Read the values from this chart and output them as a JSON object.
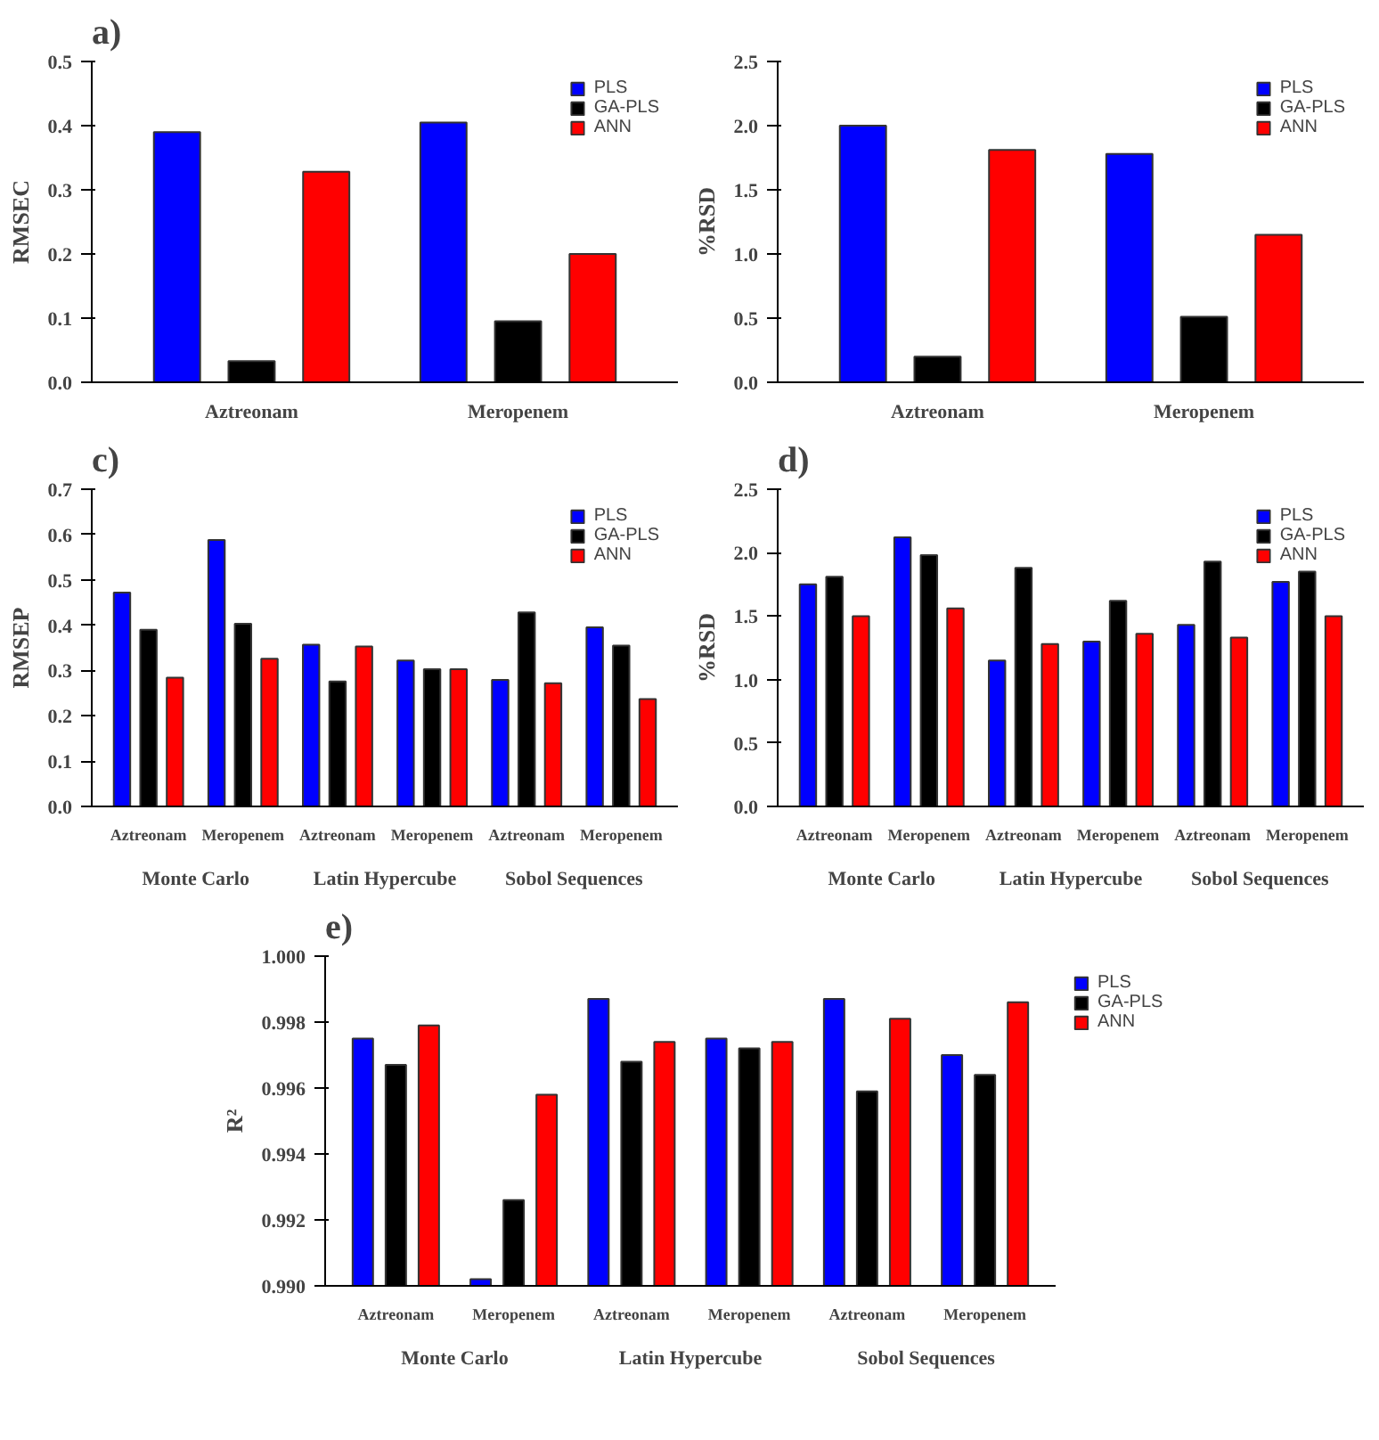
{
  "chart_data": [
    {
      "type": "bar",
      "title": "a)",
      "ylabel": "RMSEC",
      "categories": [
        "Aztreonam",
        "Meropenem"
      ],
      "series": [
        {
          "name": "PLS",
          "color": "#0000ff",
          "values": [
            0.39,
            0.405
          ]
        },
        {
          "name": "GA-PLS",
          "color": "#000000",
          "values": [
            0.033,
            0.095
          ]
        },
        {
          "name": "ANN",
          "color": "#ff0000",
          "values": [
            0.328,
            0.2
          ]
        }
      ],
      "ylim": [
        0,
        0.5
      ],
      "yticks": [
        {
          "value": 0,
          "label": "0.0"
        },
        0.1,
        0.2,
        0.3,
        0.4,
        0.5
      ],
      "legend": "top right",
      "grid": false
    },
    {
      "type": "bar",
      "ylabel": "%RSD",
      "categories": [
        "Aztreonam",
        "Meropenem"
      ],
      "series": [
        {
          "name": "PLS",
          "color": "#0000ff",
          "values": [
            2.0,
            1.78
          ]
        },
        {
          "name": "GA-PLS",
          "color": "#000000",
          "values": [
            0.2,
            0.51
          ]
        },
        {
          "name": "ANN",
          "color": "#ff0000",
          "values": [
            1.81,
            1.15
          ]
        }
      ],
      "ylim": [
        0,
        2.5
      ],
      "yticks": [
        {
          "value": 0,
          "label": "0.0"
        },
        0.5,
        {
          "value": 1,
          "label": "1.0"
        },
        1.5,
        {
          "value": 2,
          "label": "2.0"
        },
        2.5
      ],
      "legend": "top right",
      "grid": false
    },
    {
      "type": "bar",
      "title": "c)",
      "ylabel": "RMSEP",
      "categories": [
        "Aztreonam",
        "Meropenem",
        "Aztreonam",
        "Meropenem",
        "Aztreonam",
        "Meropenem"
      ],
      "series": [
        {
          "name": "PLS",
          "color": "#0000ff",
          "values": [
            0.472,
            0.588,
            0.357,
            0.322,
            0.279,
            0.395
          ]
        },
        {
          "name": "GA-PLS",
          "color": "#000000",
          "values": [
            0.39,
            0.403,
            0.276,
            0.303,
            0.428,
            0.355
          ]
        },
        {
          "name": "ANN",
          "color": "#ff0000",
          "values": [
            0.284,
            0.326,
            0.353,
            0.303,
            0.272,
            0.237
          ]
        }
      ],
      "annotations": [
        "Monte Carlo",
        "Latin Hypercube",
        "Sobol Sequences"
      ],
      "ylim": [
        0,
        0.7
      ],
      "yticks": [
        {
          "value": 0,
          "label": "0.0"
        },
        0.1,
        0.2,
        0.3,
        0.4,
        0.5,
        0.6,
        0.7
      ],
      "legend": "top right",
      "grid": false
    },
    {
      "type": "bar",
      "title": "d)",
      "ylabel": "%RSD",
      "categories": [
        "Aztreonam",
        "Meropenem",
        "Aztreonam",
        "Meropenem",
        "Aztreonam",
        "Meropenem"
      ],
      "series": [
        {
          "name": "PLS",
          "color": "#0000ff",
          "values": [
            1.75,
            2.12,
            1.15,
            1.3,
            1.43,
            1.77
          ]
        },
        {
          "name": "GA-PLS",
          "color": "#000000",
          "values": [
            1.81,
            1.98,
            1.88,
            1.62,
            1.93,
            1.85
          ]
        },
        {
          "name": "ANN",
          "color": "#ff0000",
          "values": [
            1.5,
            1.56,
            1.28,
            1.36,
            1.33,
            1.5
          ]
        }
      ],
      "annotations": [
        "Monte Carlo",
        "Latin Hypercube",
        "Sobol Sequences"
      ],
      "ylim": [
        0,
        2.5
      ],
      "yticks": [
        {
          "value": 0,
          "label": "0.0"
        },
        0.5,
        {
          "value": 1,
          "label": "1.0"
        },
        1.5,
        {
          "value": 2,
          "label": "2.0"
        },
        2.5
      ],
      "legend": "top right",
      "grid": false
    },
    {
      "type": "bar",
      "title": "e)",
      "ylabel": "R²",
      "categories": [
        "Aztreonam",
        "Meropenem",
        "Aztreonam",
        "Meropenem",
        "Aztreonam",
        "Meropenem"
      ],
      "series": [
        {
          "name": "PLS",
          "color": "#0000ff",
          "values": [
            0.9975,
            0.9902,
            0.9987,
            0.9975,
            0.9987,
            0.997
          ]
        },
        {
          "name": "GA-PLS",
          "color": "#000000",
          "values": [
            0.9967,
            0.9926,
            0.9968,
            0.9972,
            0.9959,
            0.9964
          ]
        },
        {
          "name": "ANN",
          "color": "#ff0000",
          "values": [
            0.9979,
            0.9958,
            0.9974,
            0.9974,
            0.9981,
            0.9986
          ]
        }
      ],
      "annotations": [
        "Monte Carlo",
        "Latin Hypercube",
        "Sobol Sequences"
      ],
      "ylim": [
        0.99,
        1.0
      ],
      "yticks": [
        {
          "value": 0.99,
          "label": "0.990"
        },
        {
          "value": 0.992,
          "label": "0.992"
        },
        {
          "value": 0.994,
          "label": "0.994"
        },
        {
          "value": 0.996,
          "label": "0.996"
        },
        {
          "value": 0.998,
          "label": "0.998"
        },
        {
          "value": 1.0,
          "label": "1.000"
        }
      ],
      "legend": "right",
      "grid": false
    }
  ]
}
